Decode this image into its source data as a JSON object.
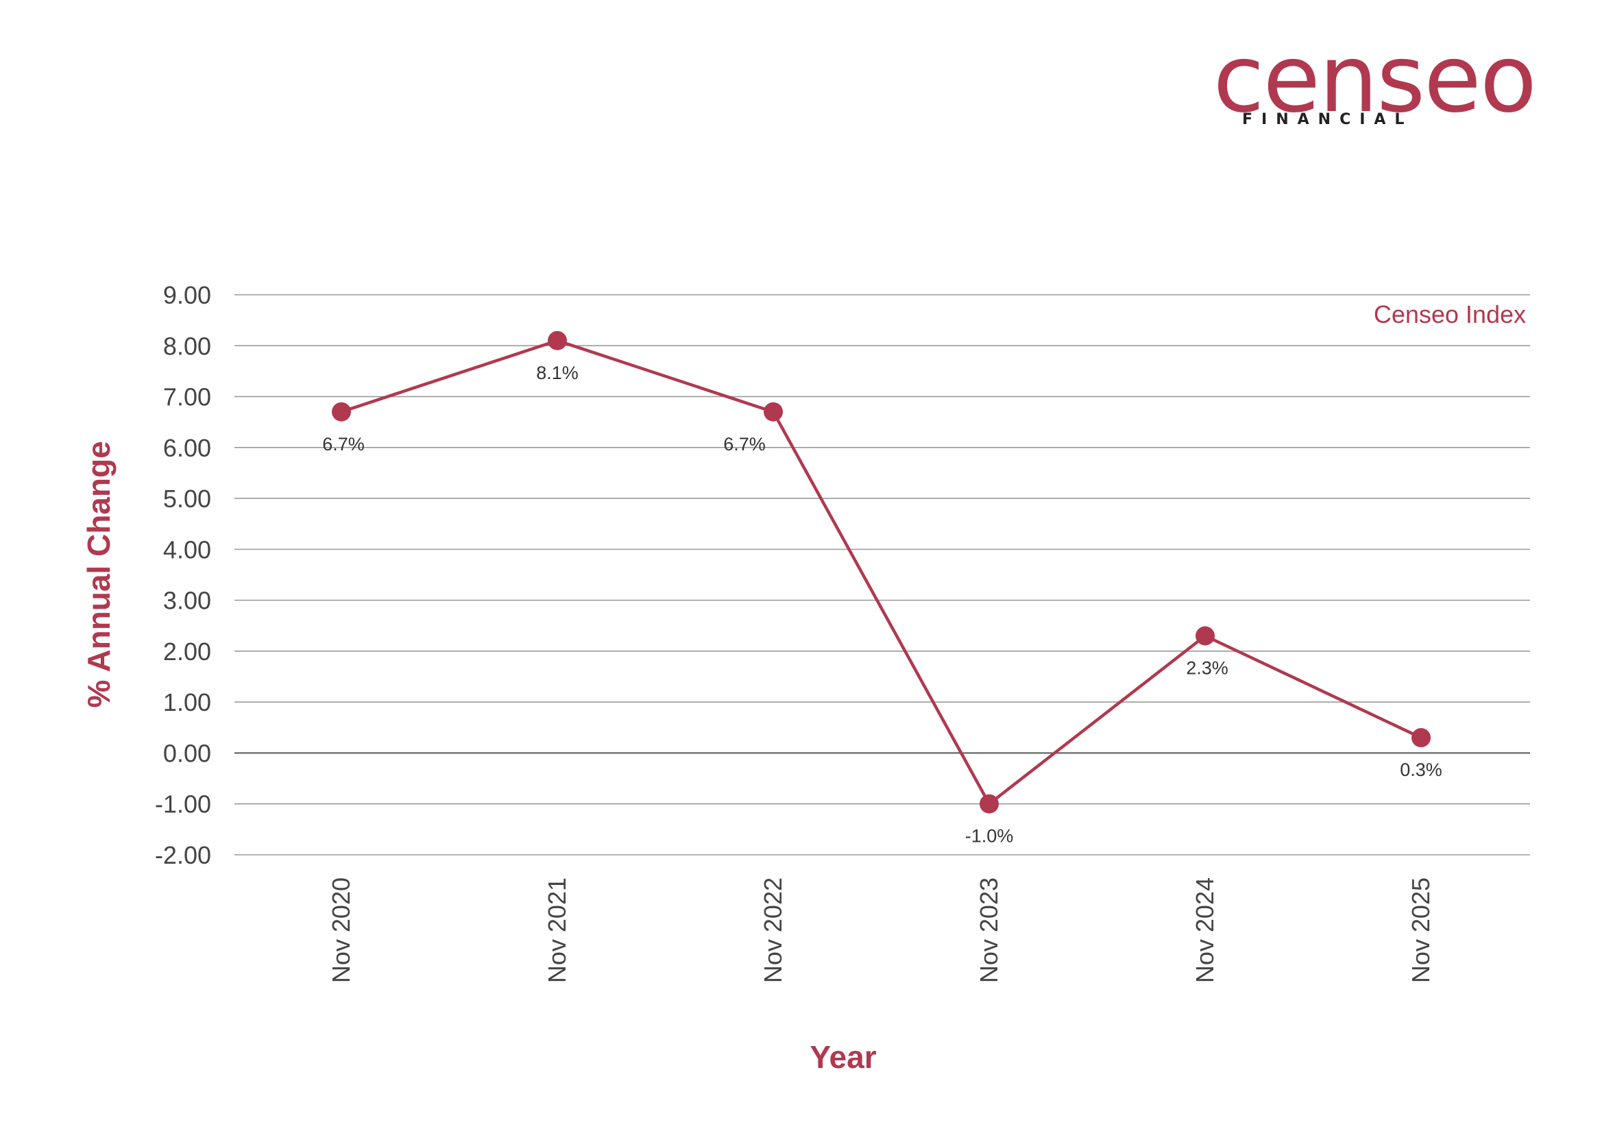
{
  "brand": {
    "name": "censeo",
    "tagline": "FINANCIAL",
    "color": "#b0394f"
  },
  "chart_data": {
    "type": "line",
    "title": "",
    "xlabel": "Year",
    "ylabel": "% Annual Change",
    "categories": [
      "Nov 2020",
      "Nov 2021",
      "Nov 2022",
      "Nov 2023",
      "Nov 2024",
      "Nov 2025"
    ],
    "series": [
      {
        "name": "Censeo Index",
        "values": [
          6.7,
          8.1,
          6.7,
          -1.0,
          2.3,
          0.3
        ],
        "labels": [
          "6.7%",
          "8.1%",
          "6.7%",
          "-1.0%",
          "2.3%",
          "0.3%"
        ],
        "color": "#b0394f"
      }
    ],
    "ylim": [
      -2,
      9
    ],
    "yticks": [
      "9.00",
      "8.00",
      "7.00",
      "6.00",
      "5.00",
      "4.00",
      "3.00",
      "2.00",
      "1.00",
      "0.00",
      "-1.00",
      "-2.00"
    ],
    "grid": true,
    "legend_position": "top-right"
  }
}
